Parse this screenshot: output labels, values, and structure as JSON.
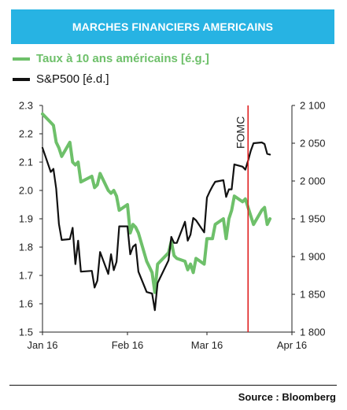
{
  "header": {
    "title": "MARCHES FINANCIERS AMERICAINS"
  },
  "legend": {
    "items": [
      {
        "label": "Taux à 10 ans américains [é.g.]",
        "color": "#6ec06a"
      },
      {
        "label": "S&P500 [é.d.]",
        "color": "#111111"
      }
    ]
  },
  "footer": {
    "source": "Source : Bloomberg"
  },
  "chart_data": {
    "type": "line",
    "x_ticks": [
      "Jan 16",
      "Feb 16",
      "Mar 16",
      "Apr 16"
    ],
    "x_range": [
      "2016-01-01",
      "2016-04-01"
    ],
    "y_left": {
      "range": [
        1.5,
        2.3
      ],
      "ticks": [
        "1.5",
        "1.6",
        "1.7",
        "1.8",
        "1.9",
        "2.0",
        "2.1",
        "2.2",
        "2.3"
      ]
    },
    "y_right": {
      "range": [
        1800,
        2100
      ],
      "ticks": [
        "1 800",
        "1 850",
        "1 900",
        "1 950",
        "2 000",
        "2 050",
        "2 100"
      ]
    },
    "annotation": {
      "label": "FOMC",
      "date": "2016-03-16",
      "color": "#e02020"
    },
    "grid": false,
    "legend_position": "top-left",
    "series": [
      {
        "axis": "left",
        "color": "#6ec06a",
        "points": [
          [
            "2016-01-01",
            2.27
          ],
          [
            "2016-01-04",
            2.24
          ],
          [
            "2016-01-05",
            2.23
          ],
          [
            "2016-01-06",
            2.17
          ],
          [
            "2016-01-07",
            2.15
          ],
          [
            "2016-01-08",
            2.12
          ],
          [
            "2016-01-11",
            2.17
          ],
          [
            "2016-01-12",
            2.1
          ],
          [
            "2016-01-13",
            2.09
          ],
          [
            "2016-01-14",
            2.1
          ],
          [
            "2016-01-15",
            2.03
          ],
          [
            "2016-01-19",
            2.05
          ],
          [
            "2016-01-20",
            2.01
          ],
          [
            "2016-01-21",
            2.02
          ],
          [
            "2016-01-22",
            2.06
          ],
          [
            "2016-01-25",
            2.0
          ],
          [
            "2016-01-26",
            1.99
          ],
          [
            "2016-01-27",
            2.0
          ],
          [
            "2016-01-28",
            1.98
          ],
          [
            "2016-01-29",
            1.93
          ],
          [
            "2016-02-01",
            1.95
          ],
          [
            "2016-02-02",
            1.85
          ],
          [
            "2016-02-03",
            1.88
          ],
          [
            "2016-02-04",
            1.87
          ],
          [
            "2016-02-05",
            1.85
          ],
          [
            "2016-02-08",
            1.75
          ],
          [
            "2016-02-09",
            1.73
          ],
          [
            "2016-02-10",
            1.71
          ],
          [
            "2016-02-11",
            1.64
          ],
          [
            "2016-02-12",
            1.74
          ],
          [
            "2016-02-16",
            1.78
          ],
          [
            "2016-02-17",
            1.82
          ],
          [
            "2016-02-18",
            1.77
          ],
          [
            "2016-02-19",
            1.76
          ],
          [
            "2016-02-22",
            1.75
          ],
          [
            "2016-02-23",
            1.72
          ],
          [
            "2016-02-24",
            1.74
          ],
          [
            "2016-02-25",
            1.71
          ],
          [
            "2016-02-26",
            1.76
          ],
          [
            "2016-02-29",
            1.74
          ],
          [
            "2016-03-01",
            1.83
          ],
          [
            "2016-03-02",
            1.83
          ],
          [
            "2016-03-03",
            1.83
          ],
          [
            "2016-03-04",
            1.88
          ],
          [
            "2016-03-07",
            1.9
          ],
          [
            "2016-03-08",
            1.83
          ],
          [
            "2016-03-09",
            1.9
          ],
          [
            "2016-03-10",
            1.93
          ],
          [
            "2016-03-11",
            1.98
          ],
          [
            "2016-03-14",
            1.96
          ],
          [
            "2016-03-15",
            1.97
          ],
          [
            "2016-03-16",
            1.94
          ],
          [
            "2016-03-17",
            1.91
          ],
          [
            "2016-03-18",
            1.88
          ],
          [
            "2016-03-21",
            1.93
          ],
          [
            "2016-03-22",
            1.94
          ],
          [
            "2016-03-23",
            1.88
          ],
          [
            "2016-03-24",
            1.9
          ]
        ]
      },
      {
        "axis": "right",
        "color": "#111111",
        "points": [
          [
            "2016-01-01",
            2044
          ],
          [
            "2016-01-04",
            2012
          ],
          [
            "2016-01-05",
            2016
          ],
          [
            "2016-01-06",
            1990
          ],
          [
            "2016-01-07",
            1943
          ],
          [
            "2016-01-08",
            1922
          ],
          [
            "2016-01-11",
            1923
          ],
          [
            "2016-01-12",
            1938
          ],
          [
            "2016-01-13",
            1890
          ],
          [
            "2016-01-14",
            1921
          ],
          [
            "2016-01-15",
            1880
          ],
          [
            "2016-01-19",
            1881
          ],
          [
            "2016-01-20",
            1859
          ],
          [
            "2016-01-21",
            1868
          ],
          [
            "2016-01-22",
            1906
          ],
          [
            "2016-01-25",
            1877
          ],
          [
            "2016-01-26",
            1903
          ],
          [
            "2016-01-27",
            1882
          ],
          [
            "2016-01-28",
            1893
          ],
          [
            "2016-01-29",
            1940
          ],
          [
            "2016-02-01",
            1940
          ],
          [
            "2016-02-02",
            1903
          ],
          [
            "2016-02-03",
            1913
          ],
          [
            "2016-02-04",
            1916
          ],
          [
            "2016-02-05",
            1880
          ],
          [
            "2016-02-08",
            1853
          ],
          [
            "2016-02-09",
            1852
          ],
          [
            "2016-02-10",
            1851
          ],
          [
            "2016-02-11",
            1829
          ],
          [
            "2016-02-12",
            1865
          ],
          [
            "2016-02-16",
            1895
          ],
          [
            "2016-02-17",
            1926
          ],
          [
            "2016-02-18",
            1918
          ],
          [
            "2016-02-19",
            1918
          ],
          [
            "2016-02-22",
            1946
          ],
          [
            "2016-02-23",
            1921
          ],
          [
            "2016-02-24",
            1929
          ],
          [
            "2016-02-25",
            1951
          ],
          [
            "2016-02-26",
            1948
          ],
          [
            "2016-02-29",
            1932
          ],
          [
            "2016-03-01",
            1978
          ],
          [
            "2016-03-02",
            1986
          ],
          [
            "2016-03-03",
            1993
          ],
          [
            "2016-03-04",
            1999
          ],
          [
            "2016-03-07",
            2001
          ],
          [
            "2016-03-08",
            1979
          ],
          [
            "2016-03-09",
            1989
          ],
          [
            "2016-03-10",
            1989
          ],
          [
            "2016-03-11",
            2022
          ],
          [
            "2016-03-14",
            2019
          ],
          [
            "2016-03-15",
            2015
          ],
          [
            "2016-03-16",
            2027
          ],
          [
            "2016-03-17",
            2040
          ],
          [
            "2016-03-18",
            2050
          ],
          [
            "2016-03-21",
            2051
          ],
          [
            "2016-03-22",
            2049
          ],
          [
            "2016-03-23",
            2036
          ],
          [
            "2016-03-24",
            2035
          ]
        ]
      }
    ]
  }
}
